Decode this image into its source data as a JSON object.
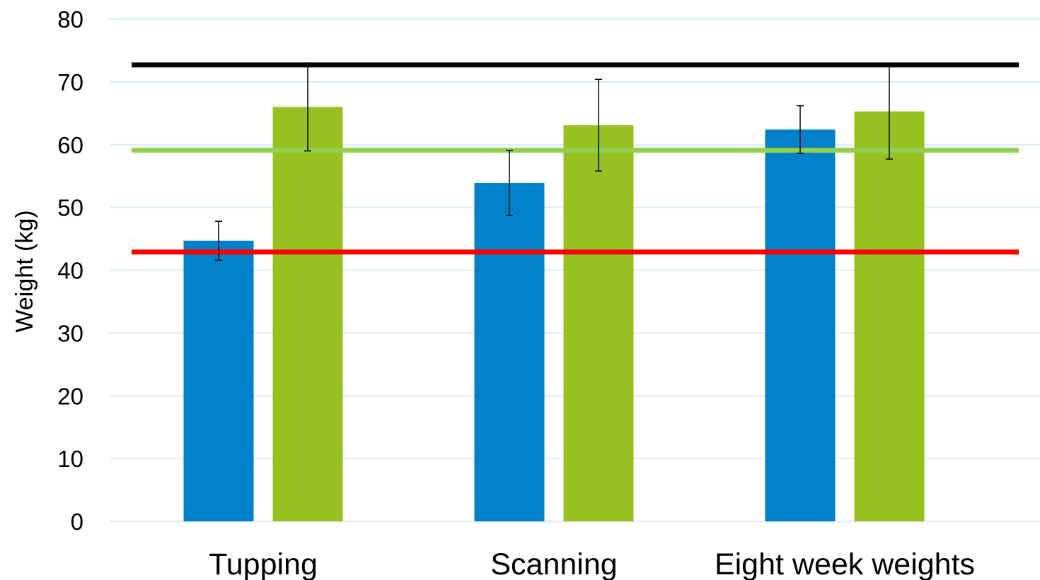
{
  "chart_data": {
    "type": "bar",
    "title": "",
    "xlabel": "",
    "ylabel": "Weight (kg)",
    "ylim": [
      0,
      80
    ],
    "yticks": [
      0,
      10,
      20,
      30,
      40,
      50,
      60,
      70,
      80
    ],
    "grid": true,
    "legend": "none",
    "categories": [
      "Tupping",
      "Scanning",
      "Eight week weights"
    ],
    "series": [
      {
        "color": "#0081c9",
        "values": [
          44.7,
          53.9,
          62.4
        ],
        "error": [
          3.1,
          5.2,
          3.8
        ]
      },
      {
        "color": "#96c121",
        "values": [
          66.0,
          63.1,
          65.3
        ],
        "error": [
          7.0,
          7.3,
          7.6
        ]
      }
    ],
    "reference_lines": [
      {
        "value": 72.7,
        "color": "#000000"
      },
      {
        "value": 59.1,
        "color": "#92d050"
      },
      {
        "value": 42.9,
        "color": "#ff0000"
      }
    ]
  }
}
